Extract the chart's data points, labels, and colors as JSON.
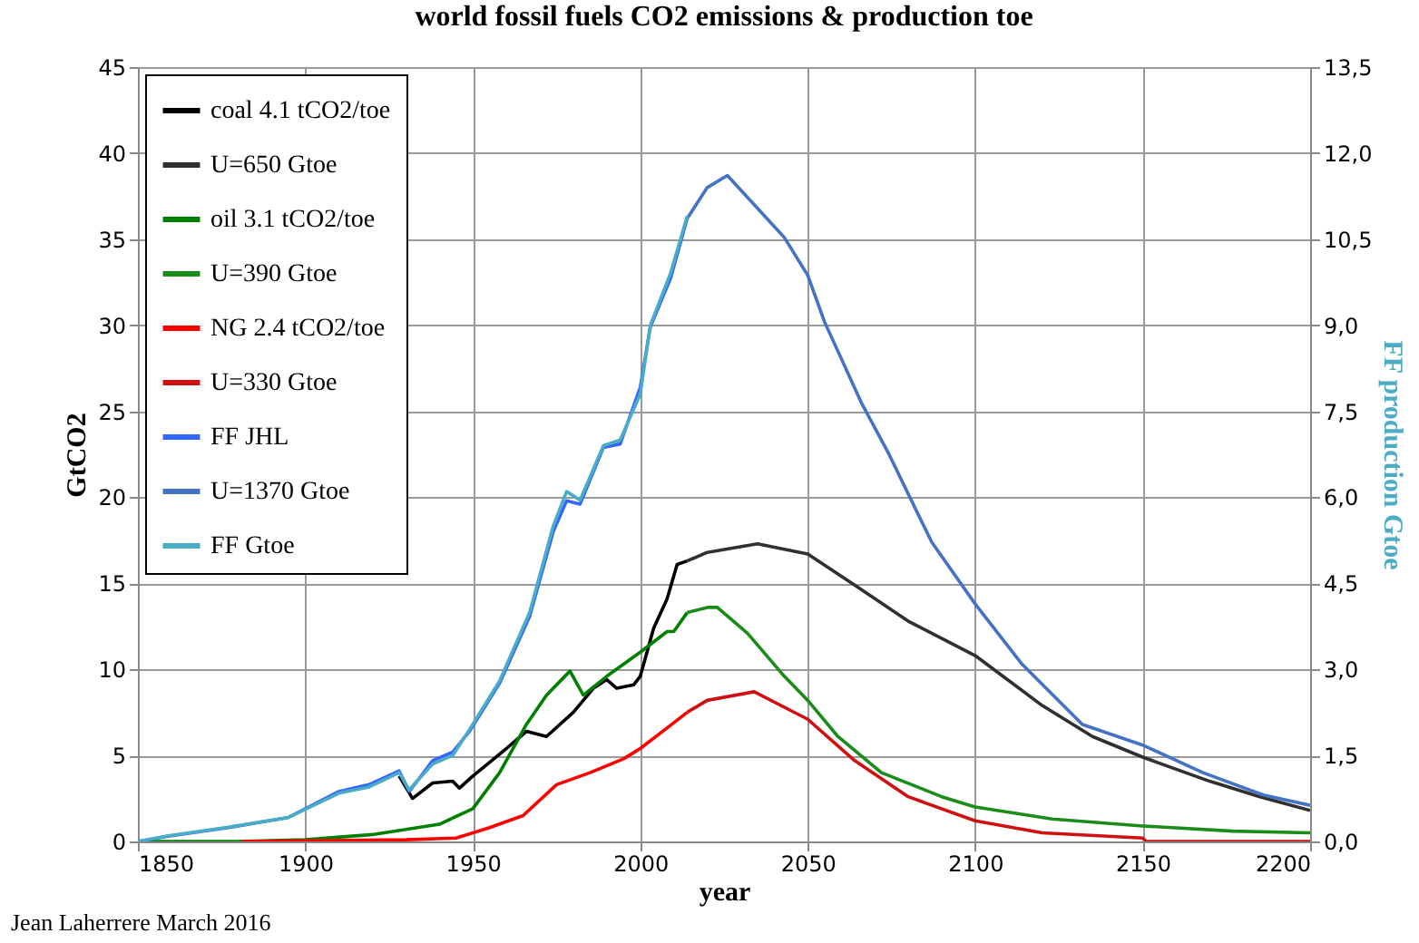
{
  "chart_data": {
    "type": "line",
    "title": "world fossil fuels CO2 emissions & production toe",
    "xlabel": "year",
    "ylabel": "GtCO2",
    "y2label": "FF production Gtoe",
    "annotations": [
      "Jean Laherrere March 2016"
    ],
    "xlim": [
      1850,
      2200
    ],
    "xticks": [
      1850,
      1900,
      1950,
      2000,
      2050,
      2100,
      2150,
      2200
    ],
    "ylim": [
      0,
      45
    ],
    "yticks": [
      0,
      5,
      10,
      15,
      20,
      25,
      30,
      35,
      40,
      45
    ],
    "y2lim": [
      0,
      13.5
    ],
    "y2ticks": [
      {
        "value": 0,
        "label": "0,0"
      },
      {
        "value": 1.5,
        "label": "1,5"
      },
      {
        "value": 3,
        "label": "3,0"
      },
      {
        "value": 4.5,
        "label": "4,5"
      },
      {
        "value": 6,
        "label": "6,0"
      },
      {
        "value": 7.5,
        "label": "7,5"
      },
      {
        "value": 9,
        "label": "9,0"
      },
      {
        "value": 10.5,
        "label": "10,5"
      },
      {
        "value": 12,
        "label": "12,0"
      },
      {
        "value": 13.5,
        "label": "13,5"
      }
    ],
    "grid": true,
    "legend": "top left",
    "marker": "none",
    "line_style": "solid",
    "series": [
      {
        "name": "coal 4.1 tCO2/toe",
        "color": "#000000",
        "x": [
          1928,
          1932,
          1938,
          1944,
          1946,
          1950,
          1960,
          1966,
          1972,
          1980,
          1986,
          1990,
          1993,
          1998,
          2000,
          2004,
          2008,
          2011,
          2014
        ],
        "values": [
          3.8,
          2.5,
          3.4,
          3.5,
          3.1,
          3.8,
          5.4,
          6.4,
          6.1,
          7.5,
          8.9,
          9.4,
          8.9,
          9.1,
          9.6,
          12.4,
          14.1,
          16.1,
          16.3
        ]
      },
      {
        "name": "U=650 Gtoe",
        "color": "#303030",
        "x": [
          2014,
          2020,
          2035,
          2050,
          2064,
          2080,
          2100,
          2120,
          2135,
          2150,
          2170,
          2185,
          2200
        ],
        "values": [
          16.3,
          16.8,
          17.3,
          16.7,
          14.9,
          12.8,
          10.8,
          7.9,
          6.1,
          4.9,
          3.5,
          2.6,
          1.8
        ]
      },
      {
        "name": "oil 3.1 tCO2/toe",
        "color": "#008000",
        "x": [
          1850,
          1880,
          1900,
          1920,
          1940,
          1950,
          1958,
          1966,
          1972,
          1979,
          1983,
          1990,
          2000,
          2008,
          2010,
          2014
        ],
        "values": [
          0,
          0,
          0.1,
          0.4,
          1.0,
          1.9,
          4.0,
          6.8,
          8.5,
          9.9,
          8.5,
          9.6,
          11.0,
          12.2,
          12.2,
          13.3
        ]
      },
      {
        "name": "U=390 Gtoe",
        "color": "#1a8c1a",
        "x": [
          2014,
          2020,
          2023,
          2032,
          2043,
          2050,
          2059,
          2072,
          2090,
          2100,
          2123,
          2150,
          2177,
          2200
        ],
        "values": [
          13.3,
          13.6,
          13.6,
          12.1,
          9.6,
          8.2,
          6.1,
          4.0,
          2.6,
          2.0,
          1.3,
          0.9,
          0.6,
          0.5
        ]
      },
      {
        "name": "NG 2.4 tCO2/toe",
        "color": "#ff0000",
        "x": [
          1881,
          1930,
          1945,
          1955,
          1965,
          1975,
          1985,
          1995,
          2000,
          2010,
          2014
        ],
        "values": [
          0,
          0.1,
          0.2,
          0.8,
          1.5,
          3.3,
          4.0,
          4.8,
          5.4,
          6.9,
          7.5
        ]
      },
      {
        "name": "U=330 Gtoe",
        "color": "#d01010",
        "x": [
          2014,
          2020,
          2034,
          2050,
          2064,
          2080,
          2100,
          2120,
          2150,
          2151,
          2200
        ],
        "values": [
          7.5,
          8.2,
          8.7,
          7.1,
          4.7,
          2.6,
          1.2,
          0.5,
          0.2,
          0,
          0
        ]
      },
      {
        "name": "FF JHL",
        "color": "#3366ff",
        "x": [
          1850,
          1859,
          1877,
          1895,
          1910,
          1919,
          1928,
          1931,
          1938,
          1944,
          1949,
          1958,
          1967,
          1974,
          1978,
          1982,
          1989,
          1994,
          2000,
          2003,
          2009,
          2014
        ],
        "values": [
          0,
          0.3,
          0.8,
          1.4,
          2.9,
          3.3,
          4.1,
          2.9,
          4.7,
          5.2,
          6.4,
          9.2,
          13.1,
          18.0,
          19.8,
          19.6,
          22.9,
          23.1,
          26.4,
          29.9,
          32.7,
          36.2
        ]
      },
      {
        "name": "U=1370 Gtoe",
        "color": "#4472c4",
        "x": [
          2014,
          2020,
          2026,
          2043,
          2050,
          2055,
          2066,
          2074,
          2087,
          2100,
          2114,
          2132,
          2150,
          2168,
          2186,
          2200
        ],
        "values": [
          36.2,
          38.0,
          38.7,
          35.1,
          32.9,
          30.2,
          25.5,
          22.6,
          17.4,
          13.8,
          10.3,
          6.8,
          5.6,
          4.0,
          2.7,
          2.1
        ]
      },
      {
        "name": "FF Gtoe",
        "color": "#4bacc6",
        "axis": "y2",
        "x": [
          1850,
          1859,
          1877,
          1895,
          1910,
          1919,
          1928,
          1931,
          1938,
          1944,
          1949,
          1958,
          1967,
          1974,
          1978,
          1982,
          1989,
          1994,
          2000,
          2003,
          2009,
          2014
        ],
        "values": [
          0,
          0.1,
          0.25,
          0.42,
          0.84,
          0.95,
          1.2,
          0.9,
          1.35,
          1.5,
          1.95,
          2.8,
          4.0,
          5.5,
          6.1,
          5.95,
          6.9,
          7.0,
          7.8,
          9.0,
          9.9,
          10.9
        ]
      }
    ]
  }
}
